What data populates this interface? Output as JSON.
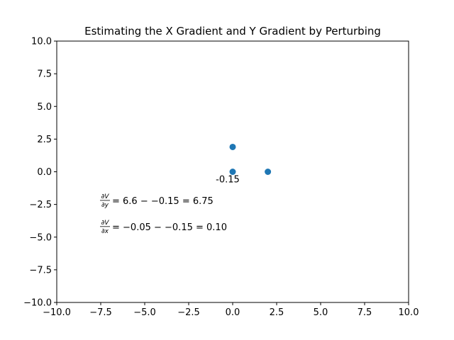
{
  "chart_data": {
    "type": "scatter",
    "title": "Estimating the X Gradient and Y Gradient by Perturbing",
    "xlabel": "",
    "ylabel": "",
    "xlim": [
      -10,
      10
    ],
    "ylim": [
      -10,
      10
    ],
    "x_ticks": [
      -10,
      -7.5,
      -5,
      -2.5,
      0,
      2.5,
      5,
      7.5,
      10
    ],
    "x_tick_labels": [
      "−10.0",
      "−7.5",
      "−5.0",
      "−2.5",
      "0.0",
      "2.5",
      "5.0",
      "7.5",
      "10.0"
    ],
    "y_ticks": [
      10,
      7.5,
      5,
      2.5,
      0,
      -2.5,
      -5,
      -7.5,
      -10
    ],
    "y_tick_labels": [
      "10.0",
      "7.5",
      "5.0",
      "2.5",
      "0.0",
      "−2.5",
      "−5.0",
      "−7.5",
      "−10.0"
    ],
    "grid": false,
    "marker_color": "#1f77b4",
    "points": [
      {
        "x": 0,
        "y": 1.9
      },
      {
        "x": 0,
        "y": 0
      },
      {
        "x": 2,
        "y": 0
      }
    ],
    "annotations": [
      {
        "text": "-0.15",
        "x": 0,
        "y": -0.6
      },
      {
        "num": "∂V",
        "den": "∂y",
        "text": "= 6.6 − −0.15 = 6.75",
        "x": -7.5,
        "y": -2.3
      },
      {
        "num": "∂V",
        "den": "∂x",
        "text": "= −0.05 − −0.15 = 0.10",
        "x": -7.5,
        "y": -4.3
      }
    ]
  }
}
